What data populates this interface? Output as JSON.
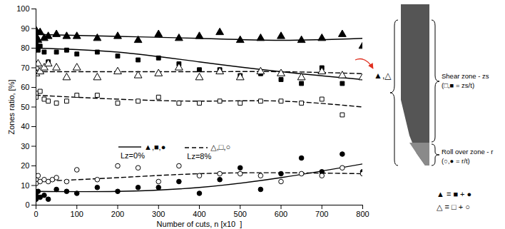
{
  "chart_data": {
    "type": "scatter",
    "x_label": "Number of cuts, n [x10  ]",
    "y_label": "Zones ratio, [%]",
    "xlim": [
      0,
      800
    ],
    "xticks": [
      0,
      100,
      200,
      300,
      400,
      500,
      600,
      700,
      800
    ],
    "ylim": [
      0,
      100
    ],
    "yticks": [
      0,
      10,
      20,
      30,
      40,
      50,
      60,
      70,
      80,
      90,
      100
    ],
    "grid": false,
    "legend": "center",
    "series": [
      {
        "name": "Lz=0%",
        "symbols": "▲,■,●",
        "line_style": "solid",
        "color": "#000000",
        "curves": [
          {
            "marker": "triangle-filled",
            "x": [
              0,
              0,
              5,
              10,
              20,
              30,
              50,
              75,
              100,
              150,
              200,
              250,
              300,
              350,
              400,
              450,
              500,
              550,
              600,
              650,
              700,
              750,
              800
            ],
            "values": [
              89,
              86,
              84,
              88,
              85,
              86,
              87,
              86,
              86,
              85,
              86,
              84,
              87,
              85,
              86,
              88,
              84,
              85,
              86,
              84,
              85,
              87,
              81
            ],
            "fit_x": [
              0,
              200,
              400,
              600,
              800
            ],
            "fit_values": [
              87,
              86,
              85,
              84,
              85
            ]
          },
          {
            "marker": "square-filled",
            "x": [
              0,
              0,
              5,
              10,
              20,
              30,
              50,
              75,
              100,
              150,
              200,
              250,
              300,
              350,
              400,
              450,
              500,
              550,
              600,
              650,
              700,
              750
            ],
            "values": [
              82,
              80,
              79,
              81,
              78,
              73,
              78,
              79,
              77,
              78,
              76,
              74,
              75,
              72,
              69,
              69,
              66,
              67,
              64,
              62,
              70,
              62
            ],
            "fit_x": [
              0,
              200,
              400,
              600,
              800
            ],
            "fit_values": [
              80,
              78,
              73,
              68,
              64
            ]
          },
          {
            "marker": "circle-filled",
            "x": [
              0,
              0,
              5,
              10,
              20,
              30,
              50,
              75,
              100,
              150,
              200,
              250,
              300,
              350,
              400,
              450,
              500,
              550,
              600,
              650,
              700,
              750,
              800
            ],
            "values": [
              5,
              3,
              7,
              4,
              5,
              3,
              8,
              7,
              6,
              9,
              7,
              9,
              9,
              12,
              6,
              13,
              19,
              8,
              16,
              24,
              17,
              26,
              17
            ],
            "fit_x": [
              0,
              200,
              400,
              600,
              800
            ],
            "fit_values": [
              7,
              7,
              9,
              14,
              21
            ]
          }
        ]
      },
      {
        "name": "Lz=8%",
        "symbols": "△,□,○",
        "line_style": "dashed",
        "color": "#000000",
        "curves": [
          {
            "marker": "triangle-open",
            "x": [
              0,
              0,
              5,
              10,
              20,
              30,
              50,
              75,
              100,
              150,
              200,
              250,
              300,
              350,
              400,
              450,
              500,
              550,
              600,
              650,
              700,
              750,
              800
            ],
            "values": [
              70,
              67,
              72,
              68,
              70,
              72,
              70,
              65,
              70,
              65,
              68,
              66,
              67,
              70,
              65,
              68,
              65,
              68,
              67,
              65,
              68,
              66,
              65
            ],
            "fit_x": [
              0,
              200,
              400,
              600,
              800
            ],
            "fit_values": [
              68,
              68,
              68,
              68,
              67
            ]
          },
          {
            "marker": "square-open",
            "x": [
              0,
              0,
              10,
              20,
              30,
              50,
              75,
              100,
              150,
              200,
              250,
              300,
              350,
              400,
              450,
              500,
              550,
              600,
              650,
              700,
              750
            ],
            "values": [
              57,
              55,
              58,
              54,
              53,
              52,
              53,
              56,
              56,
              52,
              53,
              55,
              52,
              52,
              53,
              52,
              53,
              53,
              52,
              54,
              46
            ],
            "fit_x": [
              0,
              200,
              400,
              600,
              800
            ],
            "fit_values": [
              56,
              54,
              53,
              53,
              50
            ]
          },
          {
            "marker": "circle-open",
            "x": [
              0,
              0,
              5,
              10,
              20,
              30,
              40,
              50,
              75,
              100,
              150,
              200,
              250,
              300,
              350,
              400,
              450,
              500,
              550,
              600,
              650,
              700,
              750,
              800
            ],
            "values": [
              13,
              11,
              15,
              12,
              13,
              12,
              13,
              14,
              12,
              18,
              13,
              20,
              19,
              12,
              20,
              15,
              16,
              16,
              15,
              12,
              16,
              15,
              19,
              16
            ],
            "fit_x": [
              0,
              200,
              400,
              600,
              800
            ],
            "fit_values": [
              12,
              14,
              16,
              16.5,
              16
            ]
          }
        ]
      }
    ],
    "annotations": {
      "pointer": "▲,△",
      "shear_zone": "Shear zone - zs",
      "shear_ratio": "(□,■ = zs/t)",
      "roll_zone": "Roll over zone - r",
      "roll_ratio": "(○,● = r/t)",
      "sums": [
        "▲ = ■ + ●",
        "△ = □ + ○"
      ]
    }
  }
}
